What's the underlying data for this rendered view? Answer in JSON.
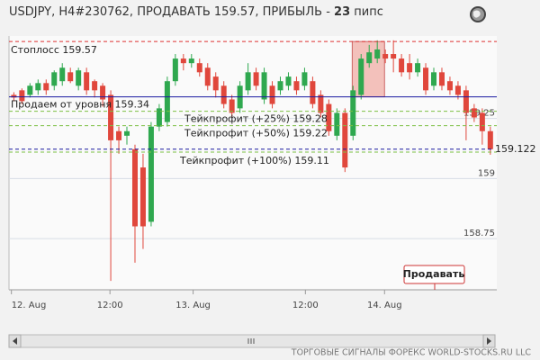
{
  "chart_data": {
    "type": "candlestick",
    "title": [
      "USDJPY, H4#230762, ПРОДАВАТЬ 159.57, ПРИБЫЛЬ - ",
      "23",
      " пипс"
    ],
    "open": [
      159.348,
      159.367,
      159.348,
      159.367,
      159.397,
      159.386,
      159.405,
      159.442,
      159.386,
      159.442,
      159.405,
      159.386,
      159.348,
      159.197,
      159.178,
      159.122,
      159.046,
      158.82,
      159.216,
      159.235,
      159.405,
      159.499,
      159.48,
      159.48,
      159.461,
      159.424,
      159.386,
      159.329,
      159.292,
      159.367,
      159.442,
      159.329,
      159.386,
      159.367,
      159.386,
      159.405,
      159.386,
      159.405,
      159.348,
      159.31,
      159.178,
      159.273,
      159.178,
      159.348,
      159.48,
      159.499,
      159.518,
      159.518,
      159.499,
      159.48,
      159.442,
      159.461,
      159.386,
      159.442,
      159.405,
      159.386,
      159.367,
      159.292,
      159.273,
      159.197
    ],
    "high": [
      159.359,
      159.375,
      159.397,
      159.412,
      159.412,
      159.45,
      159.48,
      159.461,
      159.461,
      159.461,
      159.412,
      159.397,
      159.367,
      159.216,
      159.216,
      159.141,
      159.103,
      159.235,
      159.31,
      159.424,
      159.518,
      159.518,
      159.518,
      159.499,
      159.48,
      159.442,
      159.405,
      159.348,
      159.405,
      159.48,
      159.461,
      159.461,
      159.405,
      159.424,
      159.442,
      159.424,
      159.461,
      159.424,
      159.367,
      159.329,
      159.292,
      159.292,
      159.386,
      159.518,
      159.556,
      159.575,
      159.537,
      159.575,
      159.518,
      159.518,
      159.499,
      159.48,
      159.461,
      159.461,
      159.424,
      159.405,
      159.386,
      159.31,
      159.292,
      159.216
    ],
    "low": [
      159.322,
      159.31,
      159.337,
      159.348,
      159.348,
      159.367,
      159.386,
      159.397,
      159.367,
      159.348,
      159.337,
      159.299,
      158.574,
      159.103,
      159.141,
      158.65,
      158.707,
      158.801,
      159.197,
      159.216,
      159.386,
      159.45,
      159.461,
      159.424,
      159.367,
      159.337,
      159.292,
      159.254,
      159.273,
      159.348,
      159.367,
      159.31,
      159.292,
      159.348,
      159.367,
      159.348,
      159.367,
      159.292,
      159.254,
      159.178,
      159.159,
      159.027,
      159.159,
      159.329,
      159.461,
      159.48,
      159.48,
      159.442,
      159.424,
      159.412,
      159.424,
      159.348,
      159.367,
      159.367,
      159.348,
      159.329,
      159.159,
      159.235,
      159.141,
      159.099
    ],
    "close": [
      159.337,
      159.322,
      159.386,
      159.397,
      159.367,
      159.442,
      159.461,
      159.405,
      159.45,
      159.367,
      159.367,
      159.329,
      159.159,
      159.159,
      159.197,
      158.801,
      158.801,
      159.216,
      159.292,
      159.405,
      159.499,
      159.48,
      159.499,
      159.442,
      159.386,
      159.367,
      159.31,
      159.273,
      159.386,
      159.442,
      159.386,
      159.442,
      159.31,
      159.405,
      159.424,
      159.367,
      159.442,
      159.31,
      159.273,
      159.197,
      159.273,
      159.046,
      159.367,
      159.499,
      159.525,
      159.537,
      159.499,
      159.499,
      159.442,
      159.442,
      159.48,
      159.367,
      159.442,
      159.386,
      159.367,
      159.348,
      159.273,
      159.254,
      159.197,
      159.122
    ],
    "up_color": "#2fa84f",
    "down_color": "#e0473c",
    "ylim": [
      158.537,
      159.593
    ],
    "yticks": [
      158.75,
      159,
      159.25
    ],
    "xlim": [
      -0.6,
      59.8
    ],
    "xticks": [
      {
        "value": -0.3,
        "label": "12. Aug"
      },
      {
        "value": 11.9,
        "label": "12:00"
      },
      {
        "value": 22.2,
        "label": "13. Aug"
      },
      {
        "value": 36.1,
        "label": "12:00"
      },
      {
        "value": 45.9,
        "label": "14. Aug"
      }
    ],
    "levels": [
      {
        "value": 159.57,
        "label": "Стоплосс 159.57",
        "color": "#d33",
        "style": "dashed"
      },
      {
        "value": 159.34,
        "label": "Продаем от уровня 159.34",
        "color": "#1a1aa0",
        "style": "solid"
      },
      {
        "value": 159.28,
        "label": "Тейкпрофит (+25%) 159.28",
        "color": "#7cc044",
        "style": "dashed"
      },
      {
        "value": 159.22,
        "label": "Тейкпрофит (+50%) 159.22",
        "color": "#7cc044",
        "style": "dashed"
      },
      {
        "value": 159.11,
        "label": "Тейкпрофит (+100%) 159.11",
        "color": "#7cc044",
        "style": "dashed"
      }
    ],
    "current": {
      "value": 159.122,
      "label": "159.122",
      "color": "#1a1aa0"
    },
    "button": "Продавать",
    "footer": "ТОРГОВЫЕ СИГНАЛЫ ФОРЕКС WORLD-STOCKS.RU LLC"
  }
}
